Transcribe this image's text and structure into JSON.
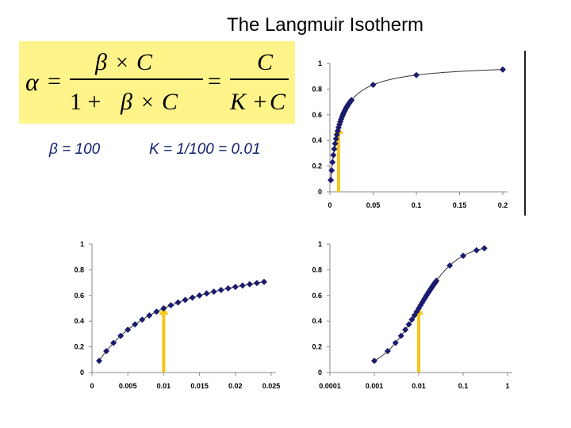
{
  "title": "The Langmuir Isotherm",
  "equation": {
    "alpha": "α",
    "eq": "=",
    "beta": "β",
    "times": "×",
    "c": "C",
    "one_plus": "1 +",
    "k_plus": "K +"
  },
  "params": {
    "beta": "β = 100",
    "k": "K = 1/100 = 0.01"
  },
  "colors": {
    "marker": "#1a1a6e",
    "arrow": "#f5c518",
    "equation_bg": "#fff48a"
  },
  "chart_data": [
    {
      "type": "scatter",
      "x_scale": "linear",
      "xlim": [
        0,
        0.2
      ],
      "ylim": [
        0,
        1
      ],
      "x_ticks": [
        "0",
        "0.05",
        "0.1",
        "0.15",
        "0.2"
      ],
      "y_ticks": [
        "0",
        "0.2",
        "0.4",
        "0.6",
        "0.8",
        "1"
      ],
      "points_x": [
        0.001,
        0.002,
        0.003,
        0.004,
        0.005,
        0.006,
        0.007,
        0.008,
        0.009,
        0.01,
        0.011,
        0.012,
        0.013,
        0.014,
        0.015,
        0.016,
        0.017,
        0.018,
        0.019,
        0.02,
        0.021,
        0.022,
        0.023,
        0.024,
        0.025,
        0.05,
        0.1,
        0.2
      ],
      "arrow_x": 0.01,
      "fit_curve": "Langmuir, K = 0.01"
    },
    {
      "type": "scatter",
      "x_scale": "linear",
      "xlim": [
        0,
        0.025
      ],
      "ylim": [
        0,
        1
      ],
      "x_ticks": [
        "0",
        "0.005",
        "0.01",
        "0.015",
        "0.02",
        "0.025"
      ],
      "y_ticks": [
        "0",
        "0.2",
        "0.4",
        "0.6",
        "0.8",
        "1"
      ],
      "points_x": [
        0.001,
        0.002,
        0.003,
        0.004,
        0.005,
        0.006,
        0.007,
        0.008,
        0.009,
        0.01,
        0.011,
        0.012,
        0.013,
        0.014,
        0.015,
        0.016,
        0.017,
        0.018,
        0.019,
        0.02,
        0.021,
        0.022,
        0.023,
        0.024
      ],
      "arrow_x": 0.01,
      "fit_curve": "Langmuir, K = 0.01"
    },
    {
      "type": "scatter",
      "x_scale": "log",
      "xlim": [
        0.0001,
        1
      ],
      "ylim": [
        0,
        1
      ],
      "x_ticks": [
        "0.0001",
        "0.001",
        "0.01",
        "0.1",
        "1"
      ],
      "y_ticks": [
        "0",
        "0.2",
        "0.4",
        "0.6",
        "0.8",
        "1"
      ],
      "points_x": [
        0.001,
        0.002,
        0.003,
        0.004,
        0.005,
        0.006,
        0.007,
        0.008,
        0.009,
        0.01,
        0.011,
        0.012,
        0.013,
        0.014,
        0.015,
        0.016,
        0.017,
        0.018,
        0.019,
        0.02,
        0.021,
        0.022,
        0.023,
        0.024,
        0.025,
        0.05,
        0.1,
        0.2,
        0.3
      ],
      "arrow_x": 0.01,
      "fit_curve": "Langmuir, K = 0.01"
    }
  ]
}
